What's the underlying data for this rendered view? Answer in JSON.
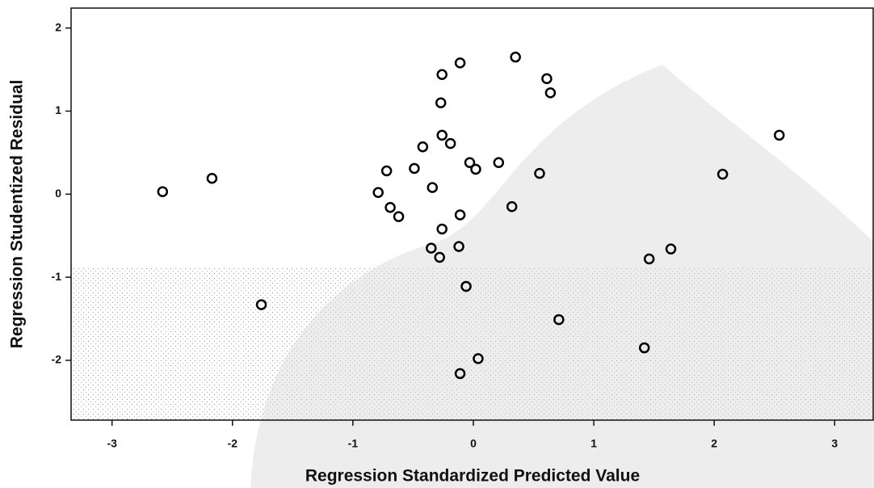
{
  "chart_data": {
    "type": "scatter",
    "x_label": "Regression Standardized Predicted Value",
    "y_label": "Regression Studentized Residual",
    "x": [
      -2.58,
      -2.17,
      -1.76,
      -0.79,
      -0.72,
      -0.69,
      -0.62,
      -0.49,
      -0.42,
      -0.34,
      -0.35,
      -0.28,
      -0.27,
      -0.26,
      -0.26,
      -0.26,
      -0.19,
      -0.11,
      -0.12,
      -0.11,
      -0.11,
      -0.06,
      -0.03,
      0.02,
      0.04,
      0.21,
      0.32,
      0.35,
      0.55,
      0.61,
      0.64,
      0.71,
      1.42,
      1.46,
      1.64,
      2.07,
      2.54
    ],
    "values": [
      0.03,
      0.19,
      -1.33,
      0.02,
      0.28,
      -0.16,
      -0.27,
      0.31,
      0.57,
      0.08,
      -0.65,
      -0.76,
      1.1,
      1.44,
      0.71,
      -0.42,
      0.61,
      -0.25,
      -0.63,
      1.58,
      -2.16,
      -1.11,
      0.38,
      0.3,
      -1.98,
      0.38,
      -0.15,
      1.65,
      0.25,
      1.39,
      1.22,
      -1.51,
      -1.85,
      -0.78,
      -0.66,
      0.24,
      0.71
    ],
    "color": "#000000",
    "xlim": [
      -3.34,
      3.32
    ],
    "ylim": [
      -2.72,
      2.24
    ],
    "xticks": [
      -3,
      -2,
      -1,
      0,
      1,
      2,
      3
    ],
    "yticks": [
      -2,
      -1,
      0,
      1,
      2
    ]
  }
}
